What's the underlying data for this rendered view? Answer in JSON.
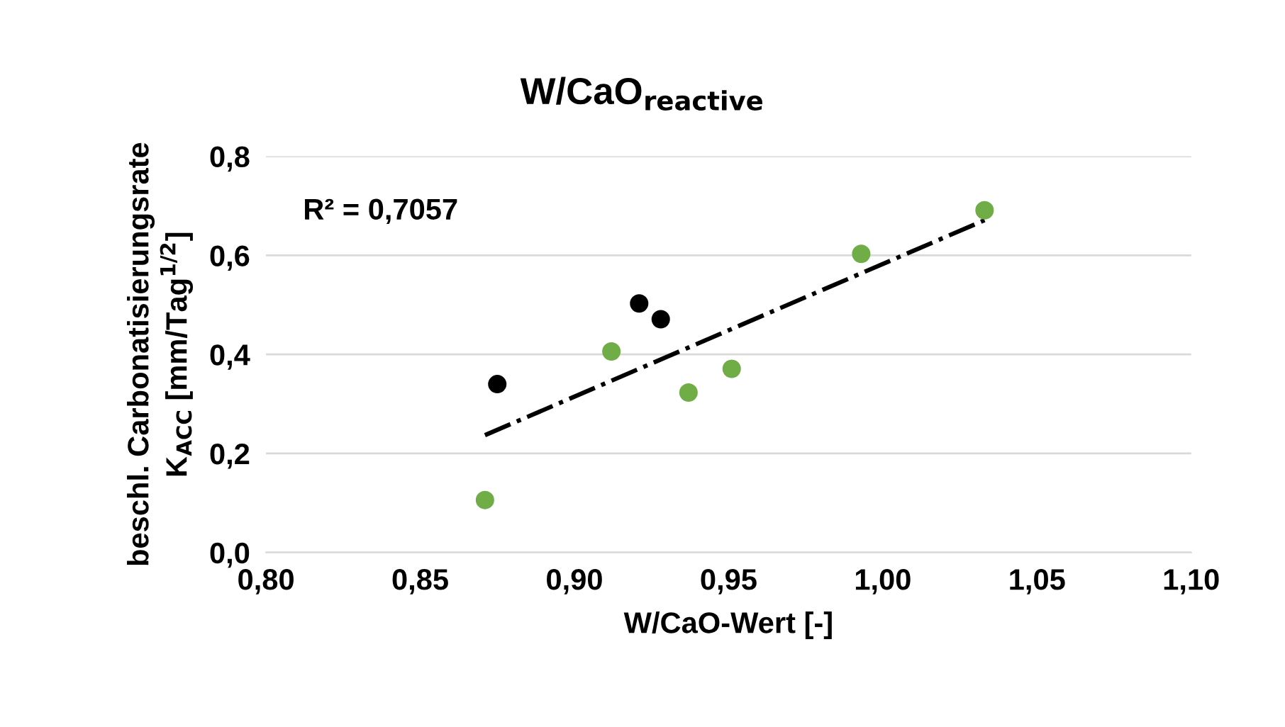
{
  "chart_data": {
    "type": "scatter",
    "title": "W/CaO$_{reactive}$",
    "xlabel": "W/CaO-Wert [-]",
    "ylabel": "beschl. Carbonatisierungsrate\nK$_{ACC}$ [mm/Tag$^{1/2}$]",
    "series": [
      {
        "color": "#70ad47",
        "x": [
          0.871,
          0.912,
          0.937,
          0.951,
          0.993,
          1.033
        ],
        "values": [
          0.106,
          0.406,
          0.323,
          0.371,
          0.603,
          0.691
        ],
        "marker": "circle"
      },
      {
        "color": "#000000",
        "x": [
          0.875,
          0.921,
          0.928
        ],
        "values": [
          0.34,
          0.503,
          0.471
        ],
        "marker": "circle"
      },
      {
        "type": "line",
        "color": "#000000",
        "x": [
          0.871,
          1.033
        ],
        "values": [
          0.237,
          0.671
        ],
        "line_style": "dashdot",
        "marker": "none"
      }
    ],
    "annotations": [
      "R² = 0,7057"
    ],
    "xlim": [
      0.8,
      1.1
    ],
    "ylim": [
      0.0,
      0.8
    ],
    "xticks": [
      {
        "value": 0.8,
        "label": "0,80"
      },
      {
        "value": 0.85,
        "label": "0,85"
      },
      {
        "value": 0.9,
        "label": "0,90"
      },
      {
        "value": 0.95,
        "label": "0,95"
      },
      {
        "value": 1.0,
        "label": "1,00"
      },
      {
        "value": 1.05,
        "label": "1,05"
      },
      {
        "value": 1.1,
        "label": "1,10"
      }
    ],
    "yticks": [
      {
        "value": 0.0,
        "label": "0,0"
      },
      {
        "value": 0.2,
        "label": "0,2"
      },
      {
        "value": 0.4,
        "label": "0,4"
      },
      {
        "value": 0.6,
        "label": "0,6"
      },
      {
        "value": 0.8,
        "label": "0,8"
      }
    ],
    "grid": "y",
    "legend": false
  }
}
